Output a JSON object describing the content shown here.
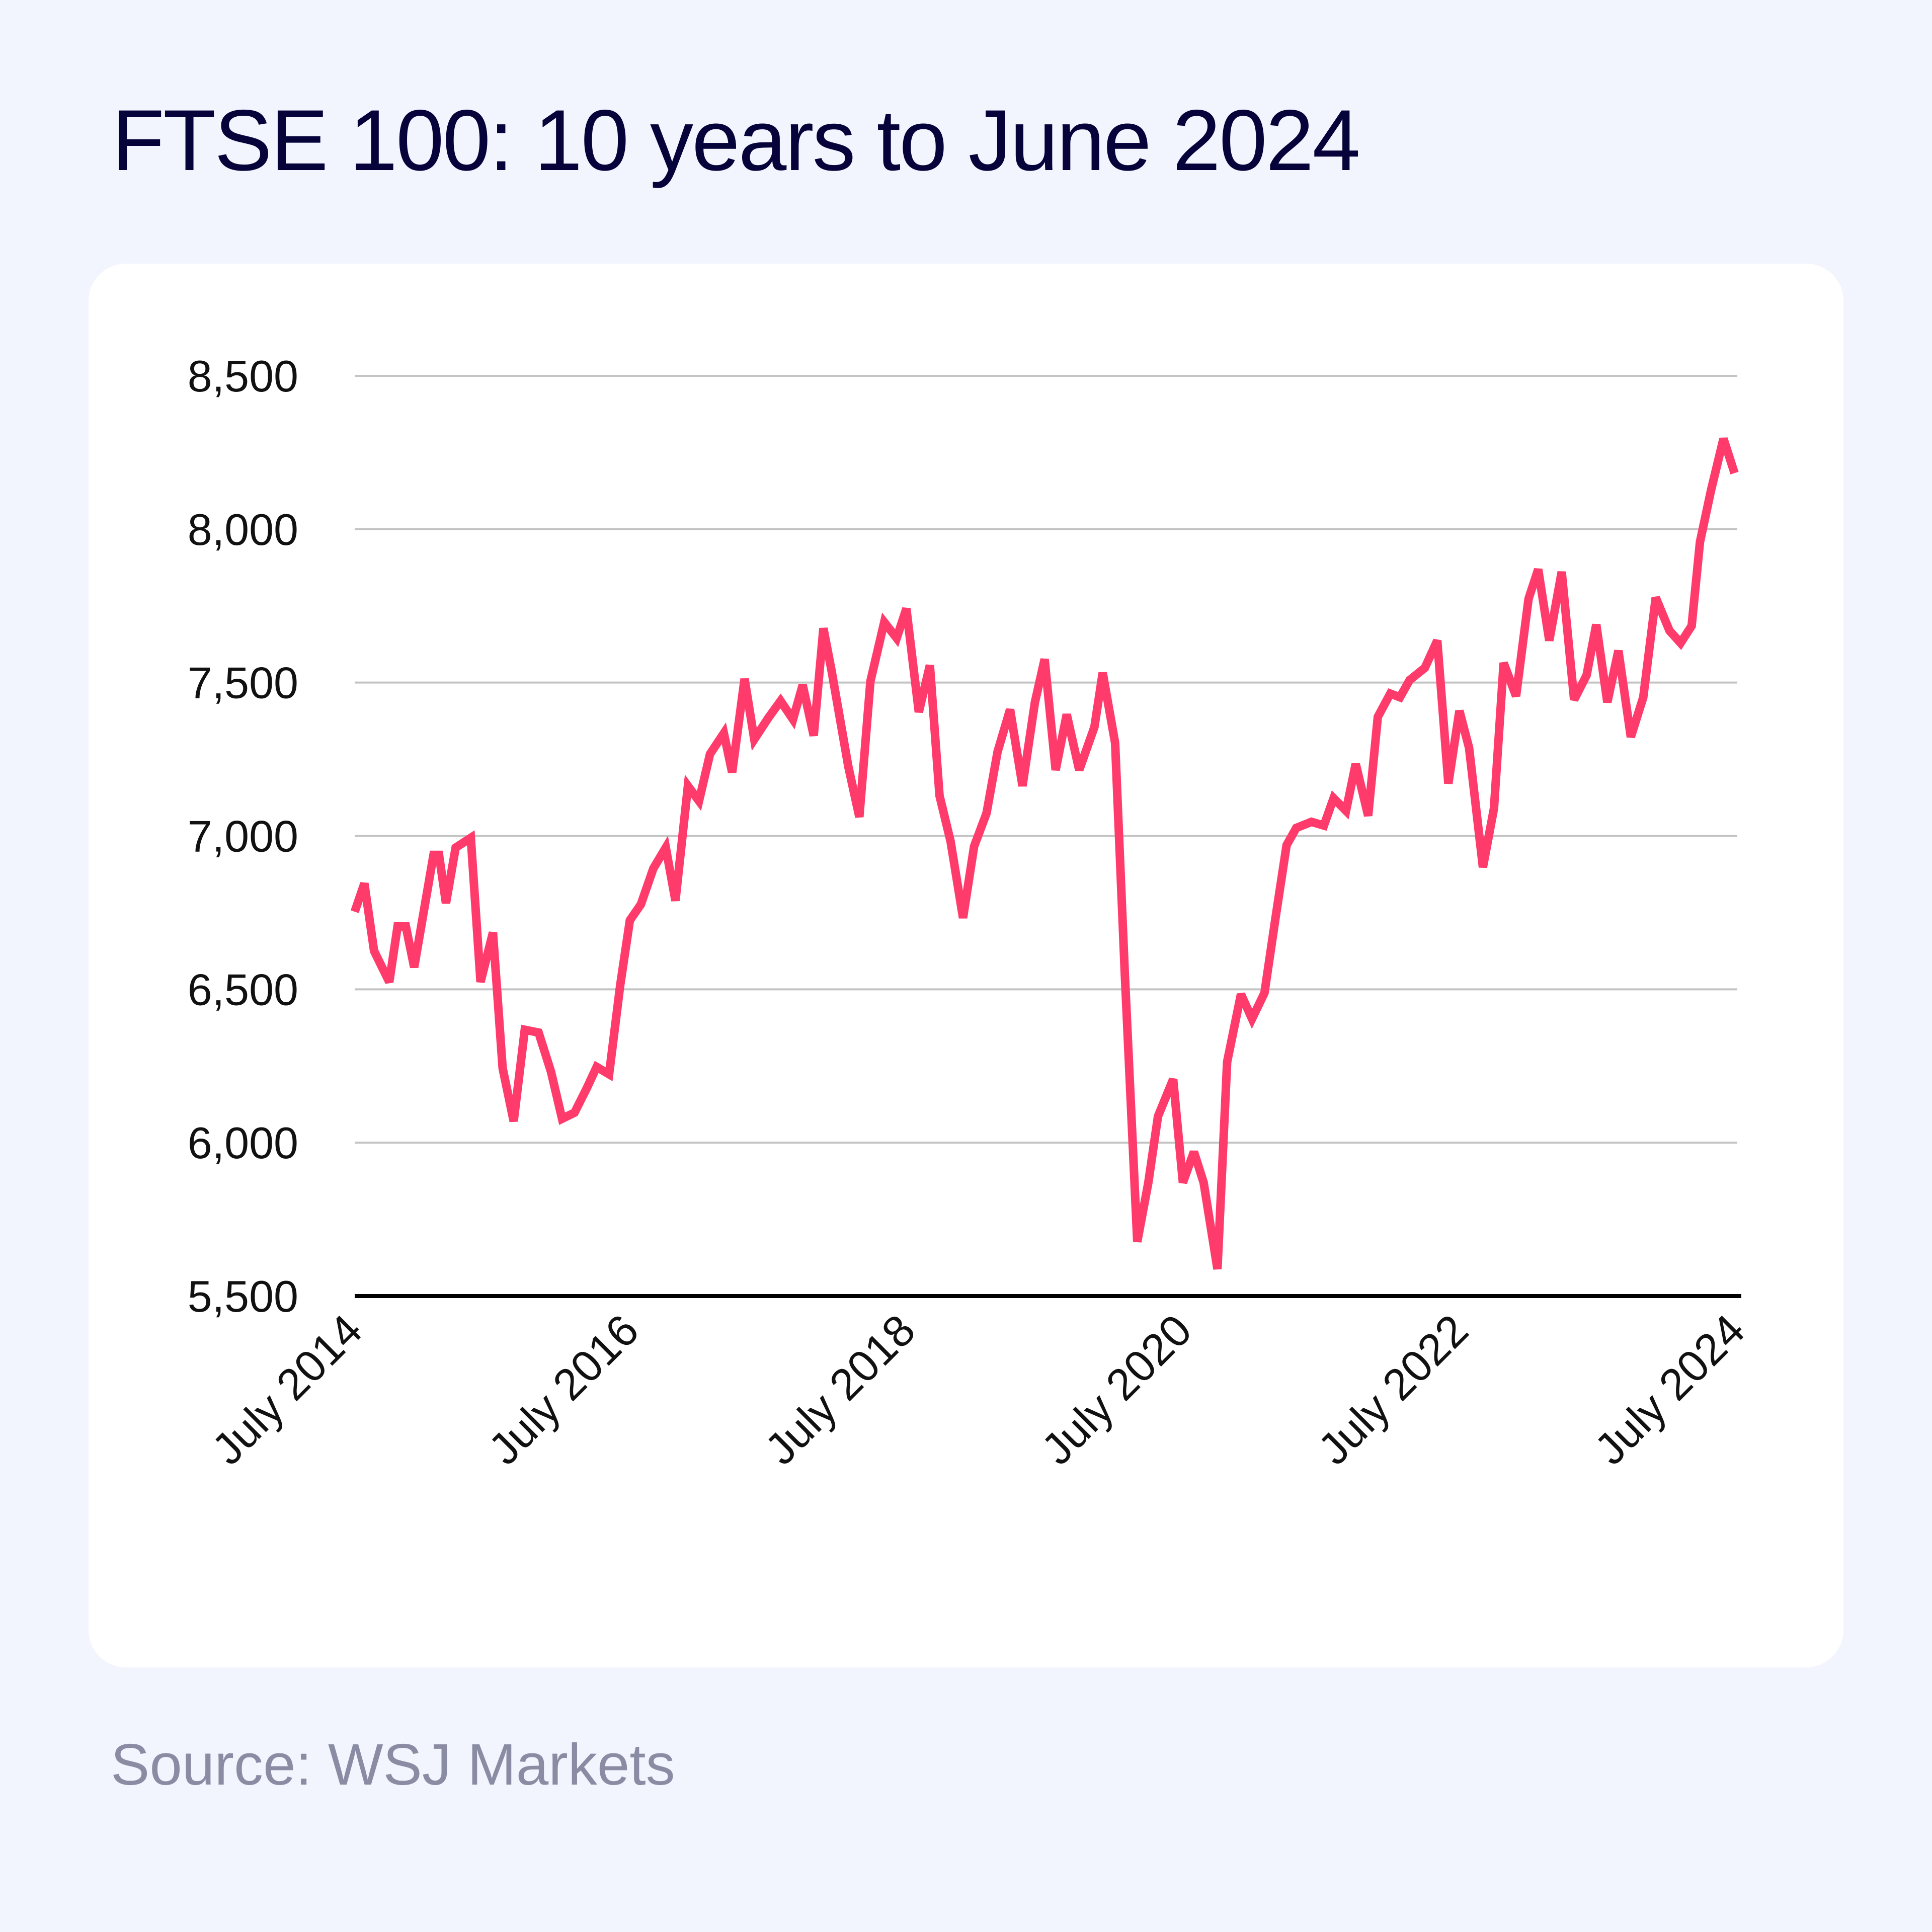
{
  "title": "FTSE 100: 10 years to June 2024",
  "source": "Source: WSJ Markets",
  "colors": {
    "line": "#ff3b6b",
    "title": "#05033a",
    "grid": "#c4c4c4",
    "axis": "#000000",
    "background": "#f2f5fd",
    "card": "#ffffff"
  },
  "chart_data": {
    "type": "line",
    "title": "FTSE 100: 10 years to June 2024",
    "xlabel": "",
    "ylabel": "",
    "ylim": [
      5500,
      8500
    ],
    "xlim": [
      2014.5,
      2024.5
    ],
    "grid": true,
    "yticks": [
      {
        "value": 8500,
        "label": "8,500"
      },
      {
        "value": 8000,
        "label": "8,000"
      },
      {
        "value": 7500,
        "label": "7,500"
      },
      {
        "value": 7000,
        "label": "7,000"
      },
      {
        "value": 6500,
        "label": "6,500"
      },
      {
        "value": 6000,
        "label": "6,000"
      },
      {
        "value": 5500,
        "label": "5,500"
      }
    ],
    "xticks": [
      {
        "value": 2014.5,
        "label": "July 2014"
      },
      {
        "value": 2016.5,
        "label": "July 2016"
      },
      {
        "value": 2018.5,
        "label": "July 2018"
      },
      {
        "value": 2020.5,
        "label": "July 2020"
      },
      {
        "value": 2022.5,
        "label": "July 2022"
      },
      {
        "value": 2024.5,
        "label": "July 2024"
      }
    ],
    "series": [
      {
        "x": [
          2014.5,
          2014.57,
          2014.64,
          2014.75,
          2014.81,
          2014.87,
          2014.93,
          2015.07,
          2015.11,
          2015.16,
          2015.23,
          2015.34,
          2015.41,
          2015.5,
          2015.57,
          2015.65,
          2015.73,
          2015.83,
          2015.92,
          2016.0,
          2016.09,
          2016.18,
          2016.25,
          2016.34,
          2016.42,
          2016.49,
          2016.57,
          2016.66,
          2016.75,
          2016.82,
          2016.91,
          2016.99,
          2017.07,
          2017.17,
          2017.23,
          2017.32,
          2017.39,
          2017.49,
          2017.58,
          2017.67,
          2017.74,
          2017.82,
          2017.89,
          2017.95,
          2018.07,
          2018.15,
          2018.23,
          2018.33,
          2018.42,
          2018.49,
          2018.58,
          2018.66,
          2018.73,
          2018.81,
          2018.9,
          2018.98,
          2019.07,
          2019.15,
          2019.24,
          2019.33,
          2019.42,
          2019.49,
          2019.57,
          2019.65,
          2019.74,
          2019.85,
          2019.91,
          2020.0,
          2020.07,
          2020.16,
          2020.24,
          2020.31,
          2020.42,
          2020.49,
          2020.57,
          2020.64,
          2020.74,
          2020.81,
          2020.91,
          2020.99,
          2021.08,
          2021.16,
          2021.24,
          2021.31,
          2021.42,
          2021.51,
          2021.58,
          2021.67,
          2021.74,
          2021.83,
          2021.9,
          2021.99,
          2022.06,
          2022.13,
          2022.24,
          2022.33,
          2022.41,
          2022.49,
          2022.56,
          2022.66,
          2022.74,
          2022.81,
          2022.9,
          2022.99,
          2023.06,
          2023.14,
          2023.23,
          2023.32,
          2023.41,
          2023.48,
          2023.56,
          2023.64,
          2023.73,
          2023.82,
          2023.91,
          2024.01,
          2024.09,
          2024.17,
          2024.23,
          2024.31,
          2024.4,
          2024.48
        ],
        "values": [
          6753,
          6845,
          6625,
          6524,
          6705,
          6705,
          6572,
          6938,
          6938,
          6781,
          6962,
          6994,
          6524,
          6685,
          6243,
          6070,
          6368,
          6359,
          6231,
          6078,
          6098,
          6179,
          6247,
          6223,
          6512,
          6725,
          6777,
          6894,
          6962,
          6789,
          7163,
          7114,
          7267,
          7335,
          7207,
          7512,
          7315,
          7384,
          7440,
          7380,
          7492,
          7327,
          7677,
          7536,
          7227,
          7062,
          7504,
          7697,
          7645,
          7741,
          7404,
          7556,
          7131,
          6982,
          6733,
          6966,
          7074,
          7275,
          7412,
          7163,
          7436,
          7576,
          7215,
          7396,
          7215,
          7355,
          7532,
          7303,
          6552,
          5677,
          5870,
          6086,
          6207,
          5870,
          5970,
          5870,
          5588,
          6263,
          6484,
          6404,
          6488,
          6733,
          6970,
          7026,
          7046,
          7034,
          7123,
          7082,
          7235,
          7066,
          7388,
          7464,
          7452,
          7508,
          7548,
          7637,
          7171,
          7408,
          7287,
          6898,
          7090,
          7564,
          7456,
          7773,
          7869,
          7637,
          7861,
          7444,
          7524,
          7689,
          7436,
          7604,
          7323,
          7452,
          7777,
          7669,
          7629,
          7685,
          7958,
          8127,
          8295,
          8183
        ]
      }
    ]
  }
}
